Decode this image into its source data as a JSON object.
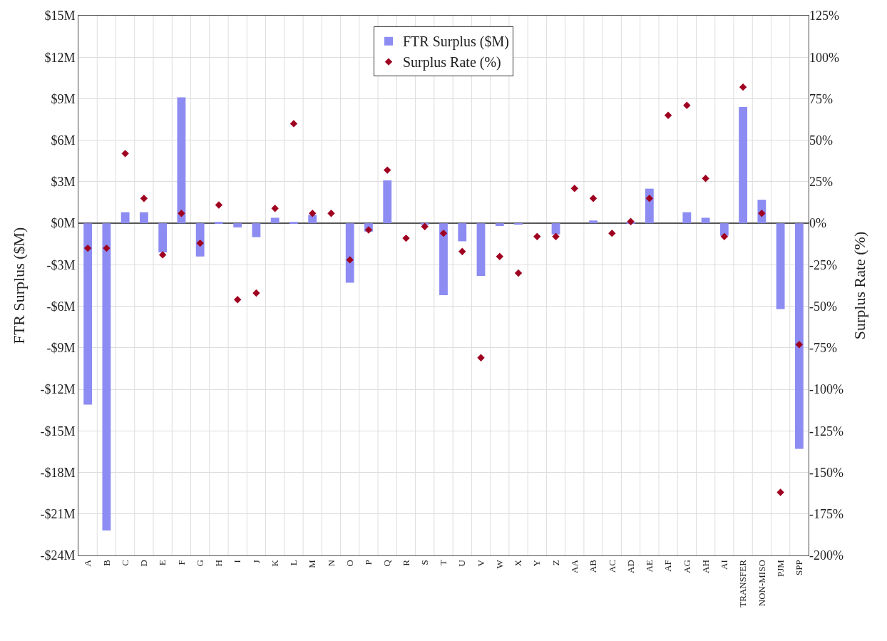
{
  "chart_data": {
    "type": "bar",
    "ylabel": "FTR Surplus ($M)",
    "y2label": "Surplus Rate (%)",
    "categories": [
      "A",
      "B",
      "C",
      "D",
      "E",
      "F",
      "G",
      "H",
      "I",
      "J",
      "K",
      "L",
      "M",
      "N",
      "O",
      "P",
      "Q",
      "R",
      "S",
      "T",
      "U",
      "V",
      "W",
      "X",
      "Y",
      "Z",
      "AA",
      "AB",
      "AC",
      "AD",
      "AE",
      "AF",
      "AG",
      "AH",
      "AI",
      "TRANSFER",
      "NON-MISO",
      "PJM",
      "SPP"
    ],
    "series": [
      {
        "name": "FTR Surplus ($M)",
        "color": "#8c8cf2",
        "values": [
          -13.1,
          -22.2,
          0.8,
          0.8,
          -2.1,
          9.1,
          -2.4,
          0.1,
          -0.3,
          -1.0,
          0.4,
          0.1,
          0.6,
          0.0,
          -4.3,
          -0.6,
          3.1,
          0.0,
          -0.1,
          -5.2,
          -1.3,
          -3.8,
          -0.2,
          -0.1,
          0.0,
          -0.8,
          0.0,
          0.2,
          0.0,
          0.1,
          2.5,
          0.0,
          0.8,
          0.4,
          -0.9,
          8.4,
          1.7,
          -6.2,
          -16.3
        ]
      },
      {
        "name": "Surplus Rate (%)",
        "type": "scatter",
        "axis": "y2",
        "color": "#a00020",
        "marker": "diamond",
        "values": [
          -15,
          -15,
          42,
          15,
          -19,
          6,
          -12,
          11,
          -46,
          -42,
          9,
          60,
          6,
          6,
          -22,
          -4,
          32,
          -9,
          -2,
          -6,
          -17,
          -81,
          -20,
          -30,
          -8,
          -8,
          21,
          15,
          -6,
          1,
          15,
          65,
          71,
          27,
          -8,
          82,
          6,
          -162,
          -73
        ]
      }
    ],
    "ylim": [
      -24,
      15
    ],
    "yticks": [
      {
        "value": 15,
        "label": "$15M"
      },
      {
        "value": 12,
        "label": "$12M"
      },
      {
        "value": 9,
        "label": "$9M"
      },
      {
        "value": 6,
        "label": "$6M"
      },
      {
        "value": 3,
        "label": "$3M"
      },
      {
        "value": 0,
        "label": "$0M"
      },
      {
        "value": -3,
        "label": "-$3M"
      },
      {
        "value": -6,
        "label": "-$6M"
      },
      {
        "value": -9,
        "label": "-$9M"
      },
      {
        "value": -12,
        "label": "-$12M"
      },
      {
        "value": -15,
        "label": "-$15M"
      },
      {
        "value": -18,
        "label": "-$18M"
      },
      {
        "value": -21,
        "label": "-$21M"
      },
      {
        "value": -24,
        "label": "-$24M"
      }
    ],
    "y2lim": [
      -200,
      125
    ],
    "y2ticks": [
      {
        "value": 125,
        "label": "125%"
      },
      {
        "value": 100,
        "label": "100%"
      },
      {
        "value": 75,
        "label": "75%"
      },
      {
        "value": 50,
        "label": "50%"
      },
      {
        "value": 25,
        "label": "25%"
      },
      {
        "value": 0,
        "label": "0%"
      },
      {
        "value": -25,
        "label": "-25%"
      },
      {
        "value": -50,
        "label": "-50%"
      },
      {
        "value": -75,
        "label": "-75%"
      },
      {
        "value": -100,
        "label": "-100%"
      },
      {
        "value": -125,
        "label": "-125%"
      },
      {
        "value": -150,
        "label": "-150%"
      },
      {
        "value": -175,
        "label": "-175%"
      },
      {
        "value": -200,
        "label": "-200%"
      }
    ],
    "grid": true,
    "legend": "top"
  }
}
